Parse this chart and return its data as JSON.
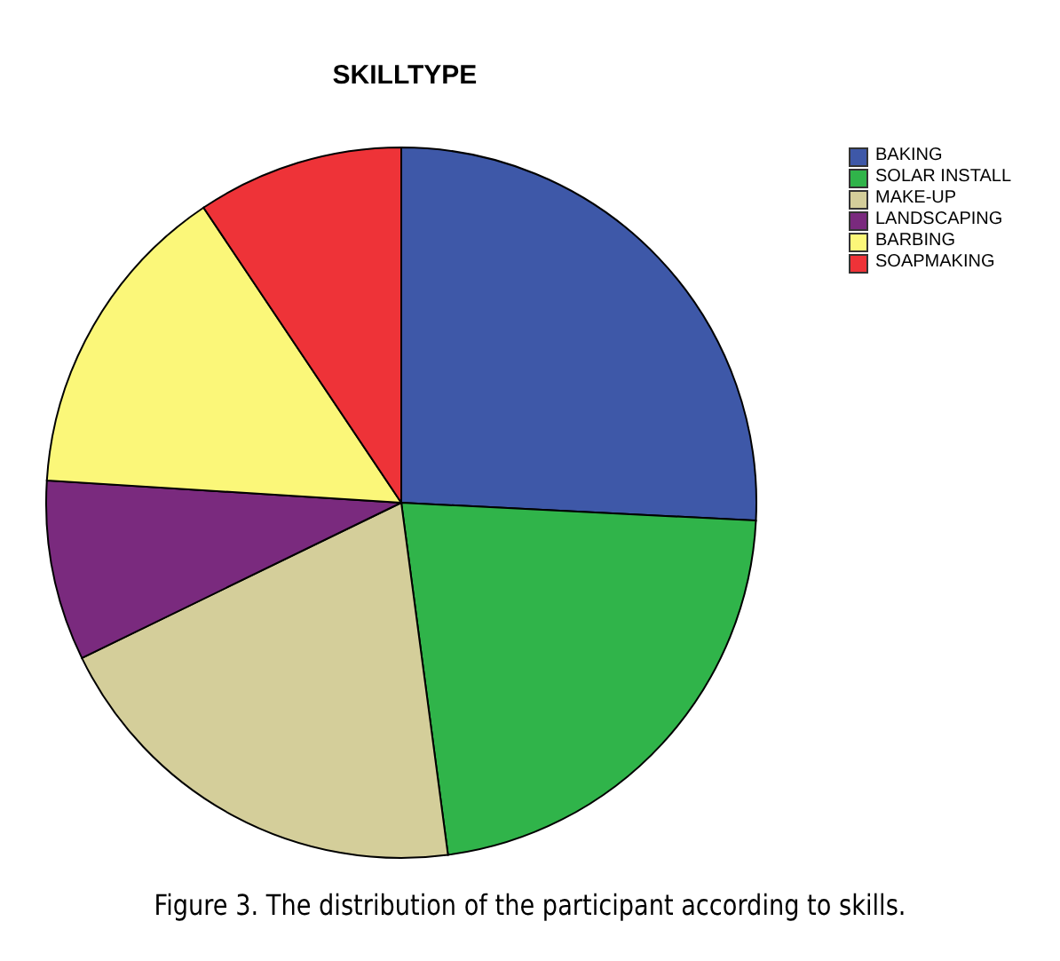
{
  "chart_data": {
    "type": "pie",
    "title": "SKILLTYPE",
    "categories": [
      "BAKING",
      "SOLAR INSTALL",
      "MAKE-UP",
      "LANDSCAPING",
      "BARBING",
      "SOAPMAKING"
    ],
    "values": [
      25.8,
      22.1,
      19.9,
      8.2,
      14.6,
      9.4
    ],
    "colors": [
      "#3e58a8",
      "#30b44a",
      "#d4ce9a",
      "#7a2a7e",
      "#fbf779",
      "#ee3338"
    ],
    "legend": "top right",
    "annotations": [
      "Figure 3. The distribution of the participant according to skills."
    ]
  }
}
